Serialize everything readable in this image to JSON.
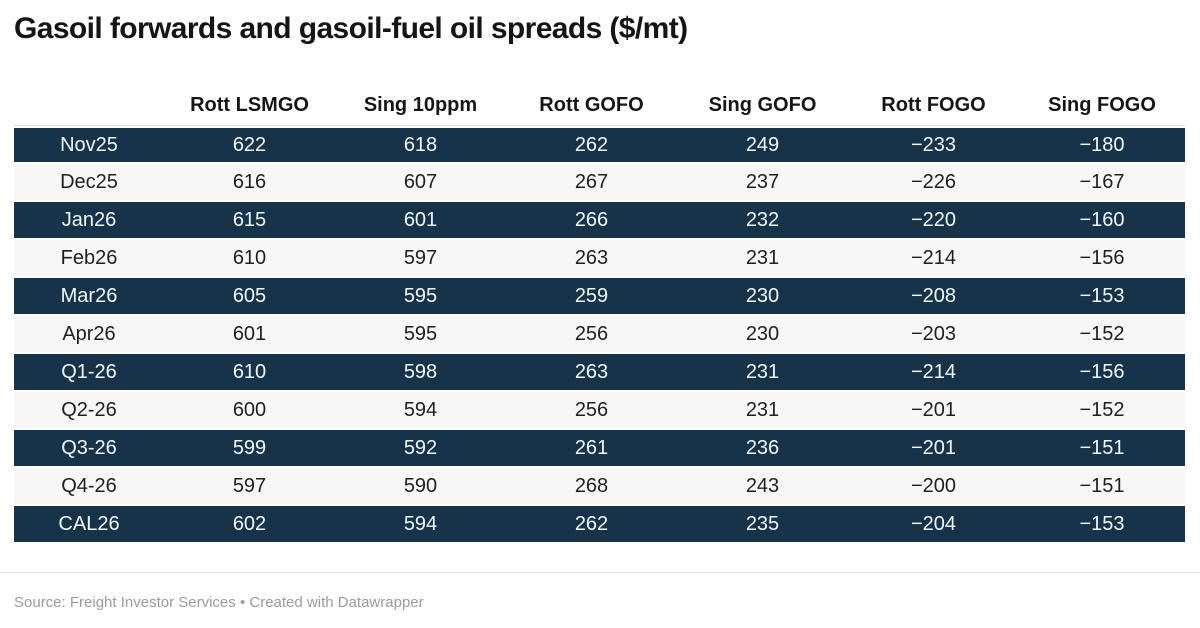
{
  "title": "Gasoil forwards and gasoil-fuel oil spreads ($/mt)",
  "colors": {
    "dark_row_bg": "#16334a",
    "dark_row_text": "#f1f6f9",
    "light_row_bg": "#f7f7f7",
    "light_row_text": "#1f1f1f",
    "header_text": "#161616",
    "title_text": "#151515",
    "footer_text": "#9b9b9b"
  },
  "table": {
    "columns": [
      "",
      "Rott LSMGO",
      "Sing 10ppm",
      "Rott GOFO",
      "Sing GOFO",
      "Rott FOGO",
      "Sing FOGO"
    ],
    "rows": [
      {
        "label": "Nov25",
        "values": [
          "622",
          "618",
          "262",
          "249",
          "−233",
          "−180"
        ]
      },
      {
        "label": "Dec25",
        "values": [
          "616",
          "607",
          "267",
          "237",
          "−226",
          "−167"
        ]
      },
      {
        "label": "Jan26",
        "values": [
          "615",
          "601",
          "266",
          "232",
          "−220",
          "−160"
        ]
      },
      {
        "label": "Feb26",
        "values": [
          "610",
          "597",
          "263",
          "231",
          "−214",
          "−156"
        ]
      },
      {
        "label": "Mar26",
        "values": [
          "605",
          "595",
          "259",
          "230",
          "−208",
          "−153"
        ]
      },
      {
        "label": "Apr26",
        "values": [
          "601",
          "595",
          "256",
          "230",
          "−203",
          "−152"
        ]
      },
      {
        "label": "Q1-26",
        "values": [
          "610",
          "598",
          "263",
          "231",
          "−214",
          "−156"
        ]
      },
      {
        "label": "Q2-26",
        "values": [
          "600",
          "594",
          "256",
          "231",
          "−201",
          "−152"
        ]
      },
      {
        "label": "Q3-26",
        "values": [
          "599",
          "592",
          "261",
          "236",
          "−201",
          "−151"
        ]
      },
      {
        "label": "Q4-26",
        "values": [
          "597",
          "590",
          "268",
          "243",
          "−200",
          "−151"
        ]
      },
      {
        "label": "CAL26",
        "values": [
          "602",
          "594",
          "262",
          "235",
          "−204",
          "−153"
        ]
      }
    ]
  },
  "footer": {
    "source_label": "Source: ",
    "source_name": "Freight Investor Services",
    "separator": " • ",
    "attribution": "Created with Datawrapper"
  },
  "chart_data": {
    "type": "table",
    "title": "Gasoil forwards and gasoil-fuel oil spreads ($/mt)",
    "unit": "$/mt",
    "categories": [
      "Nov25",
      "Dec25",
      "Jan26",
      "Feb26",
      "Mar26",
      "Apr26",
      "Q1-26",
      "Q2-26",
      "Q3-26",
      "Q4-26",
      "CAL26"
    ],
    "series": [
      {
        "name": "Rott LSMGO",
        "values": [
          622,
          616,
          615,
          610,
          605,
          601,
          610,
          600,
          599,
          597,
          602
        ]
      },
      {
        "name": "Sing 10ppm",
        "values": [
          618,
          607,
          601,
          597,
          595,
          595,
          598,
          594,
          592,
          590,
          594
        ]
      },
      {
        "name": "Rott GOFO",
        "values": [
          262,
          267,
          266,
          263,
          259,
          256,
          263,
          256,
          261,
          268,
          262
        ]
      },
      {
        "name": "Sing GOFO",
        "values": [
          249,
          237,
          232,
          231,
          230,
          230,
          231,
          231,
          236,
          243,
          235
        ]
      },
      {
        "name": "Rott FOGO",
        "values": [
          -233,
          -226,
          -220,
          -214,
          -208,
          -203,
          -214,
          -201,
          -201,
          -200,
          -204
        ]
      },
      {
        "name": "Sing FOGO",
        "values": [
          -180,
          -167,
          -160,
          -156,
          -153,
          -152,
          -156,
          -152,
          -151,
          -151,
          -153
        ]
      }
    ],
    "row_striping": "alternating dark navy / light gray, starting dark",
    "source": "Freight Investor Services",
    "attribution": "Created with Datawrapper"
  }
}
